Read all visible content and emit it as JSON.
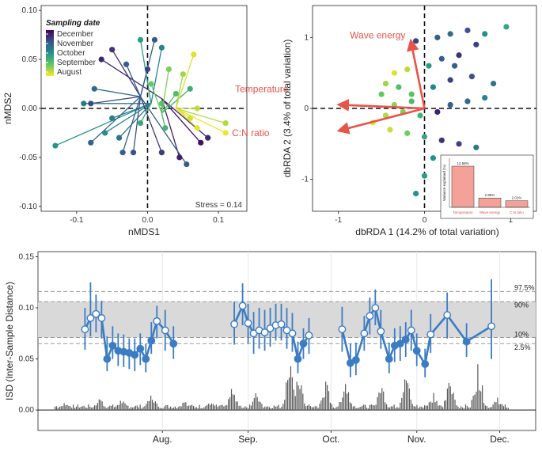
{
  "colors": {
    "viridis": [
      "#440154",
      "#3b528b",
      "#21918c",
      "#5ec962",
      "#fde725"
    ],
    "arrow": "#e8534a",
    "bar_inset": "#f4a19a",
    "isd_line": "#3b7cc4",
    "isd_bars": "#595959",
    "band": "#d9d9d9"
  },
  "chart_data": [
    {
      "panel": "a",
      "type": "scatter",
      "xlabel": "nMDS1",
      "ylabel": "nMDS2",
      "xlim": [
        -0.15,
        0.14
      ],
      "ylim": [
        -0.105,
        0.105
      ],
      "xticks": [
        -0.1,
        0.0,
        0.1
      ],
      "xtick_labels": [
        "-0.1",
        "0.0",
        "0.1"
      ],
      "yticks": [
        -0.1,
        -0.05,
        0.0,
        0.05,
        0.1
      ],
      "ytick_labels": [
        "-0.10",
        "-0.05",
        "0.00",
        "0.05",
        "0.10"
      ],
      "stress_label": "Stress = 0.14",
      "legend": {
        "title": "Sampling date",
        "entries": [
          "December",
          "November",
          "October",
          "September",
          "August"
        ],
        "placement": "top-left"
      },
      "centroids": [
        {
          "x": 0.02,
          "y": 0.01,
          "c": 0.0
        },
        {
          "x": -0.01,
          "y": 0.012,
          "c": 0.25
        },
        {
          "x": 0.005,
          "y": 0.005,
          "c": 0.5
        },
        {
          "x": 0.02,
          "y": -0.005,
          "c": 0.7
        },
        {
          "x": 0.04,
          "y": 0.0,
          "c": 0.95
        }
      ],
      "points": [
        {
          "x": -0.065,
          "y": 0.05,
          "c": 0.12
        },
        {
          "x": -0.05,
          "y": 0.06,
          "c": 0.15
        },
        {
          "x": -0.03,
          "y": 0.045,
          "c": 0.3
        },
        {
          "x": 0.0,
          "y": 0.04,
          "c": 0.2
        },
        {
          "x": 0.01,
          "y": 0.07,
          "c": 0.28
        },
        {
          "x": -0.01,
          "y": 0.07,
          "c": 0.55
        },
        {
          "x": 0.02,
          "y": 0.062,
          "c": 0.45
        },
        {
          "x": -0.08,
          "y": 0.005,
          "c": 0.22
        },
        {
          "x": -0.075,
          "y": 0.02,
          "c": 0.35
        },
        {
          "x": -0.09,
          "y": 0.005,
          "c": 0.4
        },
        {
          "x": -0.05,
          "y": -0.01,
          "c": 0.42
        },
        {
          "x": -0.06,
          "y": -0.025,
          "c": 0.48
        },
        {
          "x": -0.04,
          "y": -0.03,
          "c": 0.38
        },
        {
          "x": -0.13,
          "y": -0.038,
          "c": 0.52
        },
        {
          "x": -0.08,
          "y": -0.035,
          "c": 0.32
        },
        {
          "x": -0.035,
          "y": -0.045,
          "c": 0.3
        },
        {
          "x": -0.02,
          "y": -0.045,
          "c": 0.25
        },
        {
          "x": 0.02,
          "y": -0.045,
          "c": 0.18
        },
        {
          "x": 0.045,
          "y": -0.05,
          "c": 0.1
        },
        {
          "x": 0.055,
          "y": -0.057,
          "c": 0.28
        },
        {
          "x": 0.075,
          "y": -0.035,
          "c": 0.05
        },
        {
          "x": 0.085,
          "y": -0.03,
          "c": 0.12
        },
        {
          "x": 0.06,
          "y": 0.02,
          "c": 0.62
        },
        {
          "x": 0.04,
          "y": 0.015,
          "c": 0.7
        },
        {
          "x": 0.03,
          "y": 0.04,
          "c": 0.8
        },
        {
          "x": 0.05,
          "y": 0.035,
          "c": 0.85
        },
        {
          "x": 0.065,
          "y": 0.055,
          "c": 0.95
        },
        {
          "x": 0.07,
          "y": 0.0,
          "c": 0.9
        },
        {
          "x": 0.06,
          "y": -0.01,
          "c": 0.93
        },
        {
          "x": 0.07,
          "y": -0.02,
          "c": 0.97
        },
        {
          "x": 0.11,
          "y": -0.015,
          "c": 0.88
        },
        {
          "x": 0.11,
          "y": -0.025,
          "c": 0.98
        },
        {
          "x": 0.02,
          "y": 0.005,
          "c": 0.72
        },
        {
          "x": 0.025,
          "y": -0.02,
          "c": 0.65
        },
        {
          "x": -0.01,
          "y": -0.015,
          "c": 0.6
        },
        {
          "x": 0.005,
          "y": 0.025,
          "c": 0.76
        }
      ]
    },
    {
      "panel": "b",
      "type": "scatter",
      "xlabel": "dbRDA 1 (14.2% of total variation)",
      "ylabel": "dbRDA 2 (3.4% of total variation)",
      "xlim": [
        -1.3,
        1.3
      ],
      "ylim": [
        -1.45,
        1.45
      ],
      "xticks": [
        -1,
        0,
        1
      ],
      "yticks": [
        -1,
        0,
        1
      ],
      "vectors": [
        {
          "label": "Wave energy",
          "x": -0.15,
          "y": 0.9
        },
        {
          "label": "Temperature",
          "x": -0.95,
          "y": 0.05
        },
        {
          "label": "C:N ratio",
          "x": -0.95,
          "y": -0.3
        }
      ],
      "points": [
        {
          "x": -0.1,
          "y": 0.95,
          "c": 0.2
        },
        {
          "x": 0.15,
          "y": 1.0,
          "c": 0.3
        },
        {
          "x": 0.3,
          "y": 1.05,
          "c": 0.35
        },
        {
          "x": 0.5,
          "y": 1.1,
          "c": 0.25
        },
        {
          "x": 0.7,
          "y": 1.05,
          "c": 0.5
        },
        {
          "x": 0.95,
          "y": 1.15,
          "c": 0.6
        },
        {
          "x": 0.6,
          "y": 0.9,
          "c": 0.2
        },
        {
          "x": 0.4,
          "y": 0.75,
          "c": 0.15
        },
        {
          "x": 0.2,
          "y": 0.7,
          "c": 0.3
        },
        {
          "x": 0.05,
          "y": 0.6,
          "c": 0.55
        },
        {
          "x": -0.2,
          "y": 0.55,
          "c": 0.9
        },
        {
          "x": -0.35,
          "y": 0.5,
          "c": 0.95
        },
        {
          "x": -0.45,
          "y": 0.35,
          "c": 0.85
        },
        {
          "x": -0.5,
          "y": 0.2,
          "c": 0.75
        },
        {
          "x": -0.3,
          "y": 0.3,
          "c": 0.7
        },
        {
          "x": -0.15,
          "y": 0.2,
          "c": 0.72
        },
        {
          "x": 0.1,
          "y": 0.3,
          "c": 0.45
        },
        {
          "x": 0.3,
          "y": 0.4,
          "c": 0.2
        },
        {
          "x": 0.55,
          "y": 0.45,
          "c": 0.25
        },
        {
          "x": 0.8,
          "y": 0.35,
          "c": 0.4
        },
        {
          "x": 0.7,
          "y": 0.15,
          "c": 0.45
        },
        {
          "x": 0.5,
          "y": 0.1,
          "c": 0.35
        },
        {
          "x": 0.3,
          "y": 0.05,
          "c": 0.3
        },
        {
          "x": 0.15,
          "y": -0.05,
          "c": 0.1
        },
        {
          "x": -0.05,
          "y": -0.1,
          "c": 0.65
        },
        {
          "x": -0.25,
          "y": -0.05,
          "c": 0.8
        },
        {
          "x": -0.45,
          "y": -0.1,
          "c": 0.88
        },
        {
          "x": -0.6,
          "y": -0.2,
          "c": 0.97
        },
        {
          "x": -0.4,
          "y": -0.3,
          "c": 0.92
        },
        {
          "x": -0.2,
          "y": -0.35,
          "c": 0.78
        },
        {
          "x": 0.0,
          "y": -0.4,
          "c": 0.6
        },
        {
          "x": 0.2,
          "y": -0.45,
          "c": 0.15
        },
        {
          "x": 0.4,
          "y": -0.5,
          "c": 0.2
        },
        {
          "x": 0.6,
          "y": -0.55,
          "c": 0.4
        },
        {
          "x": 0.1,
          "y": -0.7,
          "c": 0.5
        },
        {
          "x": 0.0,
          "y": -0.95,
          "c": 0.55
        },
        {
          "x": -0.1,
          "y": -1.2,
          "c": 0.52
        },
        {
          "x": -0.35,
          "y": 0.05,
          "c": 0.82
        },
        {
          "x": -0.15,
          "y": 0.1,
          "c": 0.68
        },
        {
          "x": 0.35,
          "y": 0.6,
          "c": 0.3
        }
      ],
      "inset": {
        "type": "bar",
        "ylabel": "Variance explained (%)",
        "categories": [
          "Temperature",
          "Wave energy",
          "C:N ratio"
        ],
        "values": [
          12.58,
          2.85,
          2.01
        ],
        "value_labels": [
          "12.58%",
          "2.85%",
          "2.01%"
        ],
        "ylim": [
          0,
          15
        ]
      }
    },
    {
      "panel": "c",
      "type": "line",
      "ylabel": "ISD (Inter-Sample Distance)",
      "xtick_labels": [
        "Aug.",
        "Sep.",
        "Oct.",
        "Nov.",
        "Dec."
      ],
      "xtick_days": [
        45,
        76,
        106,
        137,
        167
      ],
      "x_domain_days": [
        0,
        180
      ],
      "ylim": [
        -0.02,
        0.155
      ],
      "yticks": [
        0.0,
        0.05,
        0.1,
        0.15
      ],
      "ytick_labels": [
        "0.00",
        "0.05",
        "0.10",
        "0.15"
      ],
      "quantiles": [
        {
          "label": "97.5%",
          "value": 0.116
        },
        {
          "label": "90%",
          "value": 0.106
        },
        {
          "label": "10%",
          "value": 0.071
        },
        {
          "label": "2.5%",
          "value": 0.065
        }
      ],
      "series": [
        {
          "segment": 1,
          "points": [
            {
              "x": 17,
              "y": 0.079,
              "lo": 0.059,
              "hi": 0.1,
              "filled": false
            },
            {
              "x": 19,
              "y": 0.09,
              "lo": 0.072,
              "hi": 0.125,
              "filled": false
            },
            {
              "x": 21,
              "y": 0.094,
              "lo": 0.076,
              "hi": 0.113,
              "filled": false
            },
            {
              "x": 23,
              "y": 0.09,
              "lo": 0.07,
              "hi": 0.107,
              "filled": false
            },
            {
              "x": 25,
              "y": 0.05,
              "lo": 0.038,
              "hi": 0.072,
              "filled": true
            },
            {
              "x": 27,
              "y": 0.063,
              "lo": 0.05,
              "hi": 0.082,
              "filled": true
            },
            {
              "x": 29,
              "y": 0.058,
              "lo": 0.043,
              "hi": 0.075,
              "filled": true
            },
            {
              "x": 31,
              "y": 0.057,
              "lo": 0.042,
              "hi": 0.074,
              "filled": true
            },
            {
              "x": 33,
              "y": 0.056,
              "lo": 0.04,
              "hi": 0.07,
              "filled": true
            },
            {
              "x": 35,
              "y": 0.054,
              "lo": 0.038,
              "hi": 0.07,
              "filled": true
            },
            {
              "x": 37,
              "y": 0.06,
              "lo": 0.044,
              "hi": 0.075,
              "filled": true
            },
            {
              "x": 39,
              "y": 0.05,
              "lo": 0.037,
              "hi": 0.065,
              "filled": true
            },
            {
              "x": 41,
              "y": 0.068,
              "lo": 0.055,
              "hi": 0.086,
              "filled": true
            },
            {
              "x": 43,
              "y": 0.087,
              "lo": 0.07,
              "hi": 0.102,
              "filled": false
            },
            {
              "x": 46,
              "y": 0.078,
              "lo": 0.058,
              "hi": 0.098,
              "filled": false
            },
            {
              "x": 49,
              "y": 0.065,
              "lo": 0.05,
              "hi": 0.082,
              "filled": true
            }
          ]
        },
        {
          "segment": 2,
          "points": [
            {
              "x": 71,
              "y": 0.084,
              "lo": 0.064,
              "hi": 0.106,
              "filled": false
            },
            {
              "x": 74,
              "y": 0.102,
              "lo": 0.083,
              "hi": 0.124,
              "filled": false
            },
            {
              "x": 76,
              "y": 0.085,
              "lo": 0.065,
              "hi": 0.104,
              "filled": false
            },
            {
              "x": 78,
              "y": 0.075,
              "lo": 0.055,
              "hi": 0.096,
              "filled": false
            },
            {
              "x": 80,
              "y": 0.078,
              "lo": 0.06,
              "hi": 0.1,
              "filled": false
            },
            {
              "x": 82,
              "y": 0.076,
              "lo": 0.058,
              "hi": 0.098,
              "filled": false
            },
            {
              "x": 84,
              "y": 0.08,
              "lo": 0.062,
              "hi": 0.1,
              "filled": false
            },
            {
              "x": 86,
              "y": 0.083,
              "lo": 0.068,
              "hi": 0.104,
              "filled": false
            },
            {
              "x": 88,
              "y": 0.084,
              "lo": 0.068,
              "hi": 0.104,
              "filled": false
            },
            {
              "x": 90,
              "y": 0.078,
              "lo": 0.06,
              "hi": 0.1,
              "filled": false
            },
            {
              "x": 92,
              "y": 0.075,
              "lo": 0.057,
              "hi": 0.095,
              "filled": false
            },
            {
              "x": 94,
              "y": 0.05,
              "lo": 0.036,
              "hi": 0.067,
              "filled": true
            },
            {
              "x": 96,
              "y": 0.065,
              "lo": 0.05,
              "hi": 0.08,
              "filled": true
            },
            {
              "x": 98,
              "y": 0.073,
              "lo": 0.055,
              "hi": 0.09,
              "filled": false
            }
          ]
        },
        {
          "segment": 3,
          "points": [
            {
              "x": 110,
              "y": 0.079,
              "lo": 0.057,
              "hi": 0.101,
              "filled": false
            },
            {
              "x": 113,
              "y": 0.046,
              "lo": 0.032,
              "hi": 0.065,
              "filled": true
            },
            {
              "x": 115,
              "y": 0.049,
              "lo": 0.034,
              "hi": 0.066,
              "filled": true
            },
            {
              "x": 118,
              "y": 0.075,
              "lo": 0.058,
              "hi": 0.092,
              "filled": false
            },
            {
              "x": 120,
              "y": 0.092,
              "lo": 0.074,
              "hi": 0.11,
              "filled": false
            },
            {
              "x": 122,
              "y": 0.1,
              "lo": 0.083,
              "hi": 0.118,
              "filled": false
            },
            {
              "x": 124,
              "y": 0.077,
              "lo": 0.06,
              "hi": 0.098,
              "filled": false
            },
            {
              "x": 127,
              "y": 0.05,
              "lo": 0.036,
              "hi": 0.066,
              "filled": true
            },
            {
              "x": 129,
              "y": 0.063,
              "lo": 0.047,
              "hi": 0.08,
              "filled": true
            },
            {
              "x": 131,
              "y": 0.065,
              "lo": 0.048,
              "hi": 0.082,
              "filled": true
            },
            {
              "x": 133,
              "y": 0.069,
              "lo": 0.052,
              "hi": 0.086,
              "filled": true
            },
            {
              "x": 135,
              "y": 0.078,
              "lo": 0.058,
              "hi": 0.098,
              "filled": false
            },
            {
              "x": 137,
              "y": 0.058,
              "lo": 0.043,
              "hi": 0.075,
              "filled": true
            },
            {
              "x": 140,
              "y": 0.045,
              "lo": 0.032,
              "hi": 0.06,
              "filled": true
            },
            {
              "x": 142,
              "y": 0.074,
              "lo": 0.056,
              "hi": 0.094,
              "filled": false
            },
            {
              "x": 148,
              "y": 0.093,
              "lo": 0.07,
              "hi": 0.115,
              "filled": false
            },
            {
              "x": 155,
              "y": 0.067,
              "lo": 0.052,
              "hi": 0.085,
              "filled": true
            },
            {
              "x": 164,
              "y": 0.082,
              "lo": 0.05,
              "hi": 0.128,
              "filled": false
            }
          ]
        }
      ],
      "bars_note": "dense grey histogram of sample activity along time axis",
      "bar_peaks": [
        {
          "x": 10,
          "y": 0.01
        },
        {
          "x": 22,
          "y": 0.015
        },
        {
          "x": 30,
          "y": 0.012
        },
        {
          "x": 41,
          "y": 0.018
        },
        {
          "x": 53,
          "y": 0.012
        },
        {
          "x": 62,
          "y": 0.01
        },
        {
          "x": 70,
          "y": 0.025
        },
        {
          "x": 79,
          "y": 0.02
        },
        {
          "x": 91,
          "y": 0.055
        },
        {
          "x": 94,
          "y": 0.04
        },
        {
          "x": 104,
          "y": 0.03
        },
        {
          "x": 111,
          "y": 0.035
        },
        {
          "x": 124,
          "y": 0.03
        },
        {
          "x": 133,
          "y": 0.04
        },
        {
          "x": 143,
          "y": 0.02
        },
        {
          "x": 149,
          "y": 0.035
        },
        {
          "x": 159,
          "y": 0.05
        },
        {
          "x": 166,
          "y": 0.015
        }
      ]
    }
  ]
}
